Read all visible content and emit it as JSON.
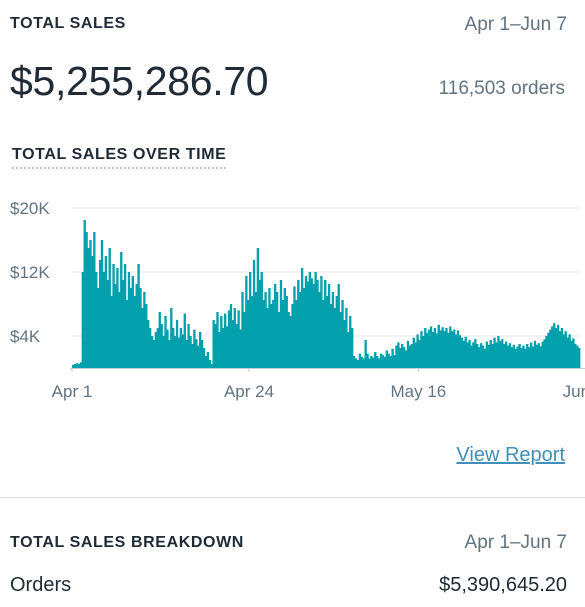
{
  "summary": {
    "title": "TOTAL SALES",
    "date_range": "Apr 1–Jun 7",
    "total_amount": "$5,255,286.70",
    "orders": "116,503 orders"
  },
  "chart_section": {
    "title": "TOTAL SALES OVER TIME",
    "link": "View Report"
  },
  "breakdown": {
    "title": "TOTAL SALES BREAKDOWN",
    "date_range": "Apr 1–Jun 7",
    "rows": [
      {
        "label": "Orders",
        "value": "$5,390,645.20"
      }
    ]
  },
  "colors": {
    "accent": "#00a0ac",
    "link": "#3f8fb8"
  },
  "chart_data": {
    "type": "area",
    "ylim": [
      0,
      20000
    ],
    "y_ticks": [
      {
        "value": 20000,
        "label": "$20K"
      },
      {
        "value": 12000,
        "label": "$12K"
      },
      {
        "value": 4000,
        "label": "$4K"
      }
    ],
    "x_ticks": [
      {
        "index": 0,
        "label": "Apr 1"
      },
      {
        "index": 92,
        "label": "Apr 24"
      },
      {
        "index": 180,
        "label": "May 16"
      },
      {
        "index": 269,
        "label": "Jun"
      }
    ],
    "grid": true,
    "values": [
      400,
      500,
      600,
      500,
      700,
      12000,
      18500,
      17000,
      15000,
      16000,
      14000,
      17000,
      12000,
      10000,
      13500,
      16000,
      12000,
      14000,
      11000,
      15000,
      9000,
      13000,
      10500,
      12500,
      9500,
      14500,
      11000,
      13000,
      8500,
      12000,
      10000,
      11500,
      9000,
      10500,
      13000,
      10000,
      7500,
      9500,
      8000,
      6000,
      5000,
      4000,
      3500,
      4500,
      5000,
      7000,
      5500,
      4000,
      6500,
      4800,
      3500,
      7500,
      5000,
      4000,
      6000,
      3800,
      5000,
      4200,
      6800,
      3500,
      5500,
      4000,
      3000,
      4800,
      3600,
      2800,
      4500,
      3500,
      2500,
      1500,
      2000,
      1000,
      500,
      6000,
      5500,
      7000,
      4500,
      6500,
      5000,
      6800,
      5200,
      7200,
      8000,
      6000,
      7500,
      5500,
      7200,
      4800,
      9500,
      7000,
      11500,
      8500,
      12000,
      9000,
      13500,
      9500,
      15000,
      11000,
      12000,
      8500,
      9500,
      7500,
      10000,
      8000,
      8500,
      10500,
      9500,
      7000,
      11000,
      8500,
      10000,
      9000,
      7000,
      6500,
      8000,
      10200,
      8500,
      11000,
      9500,
      12500,
      10000,
      11500,
      10800,
      12000,
      11200,
      10500,
      12000,
      11000,
      9500,
      11500,
      8500,
      11000,
      9000,
      10500,
      8000,
      9500,
      7500,
      9000,
      10500,
      7000,
      8500,
      6000,
      7500,
      4500,
      6500,
      5000,
      1500,
      1200,
      1000,
      1800,
      1400,
      1200,
      3500,
      1800,
      1200,
      1500,
      1300,
      2000,
      1500,
      1200,
      1800,
      1600,
      1400,
      2200,
      1800,
      1500,
      2400,
      1600,
      2800,
      3200,
      2500,
      3000,
      2600,
      2200,
      3400,
      2800,
      3000,
      3800,
      3200,
      4200,
      3500,
      4600,
      4000,
      5000,
      4400,
      4800,
      5200,
      4500,
      5000,
      4300,
      5400,
      4700,
      5100,
      4600,
      5000,
      4400,
      5200,
      4600,
      4800,
      4200,
      4700,
      4100,
      3800,
      3400,
      3900,
      3200,
      3500,
      2800,
      3200,
      3600,
      3000,
      2600,
      3100,
      2800,
      2400,
      3300,
      2900,
      3500,
      3000,
      3800,
      3200,
      4000,
      3400,
      3600,
      3000,
      3300,
      2800,
      3100,
      2600,
      2900,
      2400,
      2700,
      3000,
      2500,
      2800,
      2400,
      3000,
      2600,
      3200,
      2700,
      3400,
      2900,
      3100,
      2700,
      3300,
      3600,
      4000,
      4400,
      4800,
      5200,
      5600,
      5000,
      5400,
      4600,
      5000,
      4200,
      4600,
      3800,
      4200,
      3400,
      3700,
      3000,
      2800,
      2500
    ]
  }
}
